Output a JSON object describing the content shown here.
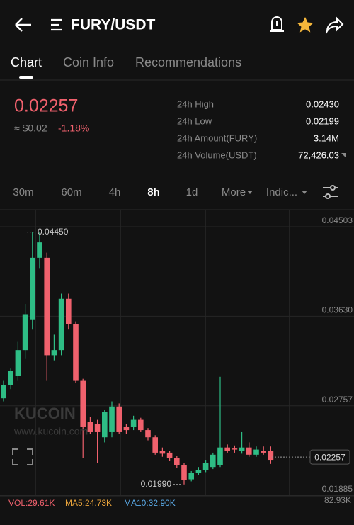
{
  "header": {
    "title": "FURY/USDT"
  },
  "tabs": [
    "Chart",
    "Coin Info",
    "Recommendations"
  ],
  "price": {
    "last": "0.02257",
    "fiat": "≈ $0.02",
    "change": "-1.18%"
  },
  "stats": [
    {
      "label": "24h High",
      "value": "0.02430"
    },
    {
      "label": "24h Low",
      "value": "0.02199"
    },
    {
      "label": "24h Amount(FURY)",
      "value": "3.14M"
    },
    {
      "label": "24h Volume(USDT)",
      "value": "72,426.03"
    }
  ],
  "intervals": [
    "30m",
    "60m",
    "4h",
    "8h",
    "1d",
    "More",
    "Indic..."
  ],
  "watermark": {
    "brand": "KUCOIN",
    "url": "www.kucoin.com"
  },
  "chart_data": {
    "type": "candlestick",
    "ylim": [
      0.01885,
      0.04503
    ],
    "yticks": [
      0.04503,
      {
        "value": 0.0363,
        "label": "0.03630"
      },
      0.02757,
      0.01885
    ],
    "open": [
      0.0283,
      0.0296,
      0.0305,
      0.033,
      0.036,
      0.042,
      0.042,
      0.0325,
      0.033,
      0.038,
      0.0355,
      0.03,
      0.026,
      0.0258,
      0.0245,
      0.025,
      0.0275,
      0.0255,
      0.0255,
      0.0262,
      0.0252,
      0.0245,
      0.0232,
      0.023,
      0.0225,
      0.0218,
      0.0204,
      0.021,
      0.0213,
      0.0216,
      0.0218,
      0.0235,
      0.0234,
      0.0232,
      0.0235,
      0.0228,
      0.0232,
      0.0232
    ],
    "high": [
      0.03,
      0.0312,
      0.0338,
      0.0375,
      0.0445,
      0.0445,
      0.0425,
      0.0345,
      0.0385,
      0.0385,
      0.0358,
      0.0302,
      0.0265,
      0.0262,
      0.0272,
      0.028,
      0.0278,
      0.0258,
      0.0266,
      0.0264,
      0.0254,
      0.0247,
      0.0235,
      0.0232,
      0.0227,
      0.022,
      0.0212,
      0.0216,
      0.0223,
      0.023,
      0.0304,
      0.0238,
      0.0237,
      0.025,
      0.024,
      0.0236,
      0.0236,
      0.0236
    ],
    "low": [
      0.028,
      0.0292,
      0.03,
      0.0322,
      0.035,
      0.041,
      0.03,
      0.032,
      0.0325,
      0.035,
      0.0298,
      0.0225,
      0.0248,
      0.022,
      0.024,
      0.0245,
      0.0248,
      0.0248,
      0.0252,
      0.025,
      0.0242,
      0.0228,
      0.0226,
      0.0222,
      0.0215,
      0.0199,
      0.0202,
      0.0208,
      0.0211,
      0.0214,
      0.0216,
      0.023,
      0.023,
      0.0229,
      0.0226,
      0.0226,
      0.0228,
      0.0219
    ],
    "close": [
      0.0296,
      0.031,
      0.033,
      0.0365,
      0.042,
      0.0435,
      0.0325,
      0.033,
      0.038,
      0.0355,
      0.03,
      0.0255,
      0.025,
      0.025,
      0.027,
      0.0275,
      0.025,
      0.0252,
      0.0262,
      0.0252,
      0.0245,
      0.023,
      0.0229,
      0.0225,
      0.0218,
      0.0203,
      0.021,
      0.0213,
      0.022,
      0.0228,
      0.0235,
      0.0232,
      0.0233,
      0.0235,
      0.0228,
      0.0233,
      0.023,
      0.0223
    ],
    "up_color": "#2ebd85",
    "down_color": "#f0616d",
    "last_price": {
      "value": 0.02257,
      "label": "0.02257"
    },
    "max_label": {
      "value": 0.0445,
      "label": "0.04450"
    },
    "min_label": {
      "value": 0.0199,
      "label": "0.01990"
    }
  },
  "volume": {
    "vol": "VOL:29.61K",
    "ma5": "MA5:24.73K",
    "ma10": "MA10:32.90K",
    "max": "82.93K"
  }
}
